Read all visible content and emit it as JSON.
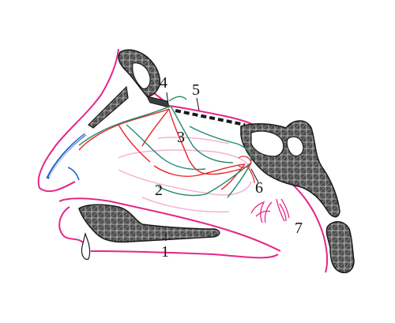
{
  "colors": {
    "outline": "#e6268a",
    "bone_fill": "#5a5a5a",
    "bone_stroke": "#1a1a1a",
    "artery": "#e8262d",
    "vein_nerve": "#1f8a6b",
    "blue_vessel": "#2460c8",
    "mucosa": "#f3b3d6",
    "label": "#111111"
  },
  "labels": {
    "l1": "1",
    "l2": "2",
    "l3": "3",
    "l4": "4",
    "l5": "5",
    "l6": "6",
    "l7": "7"
  }
}
